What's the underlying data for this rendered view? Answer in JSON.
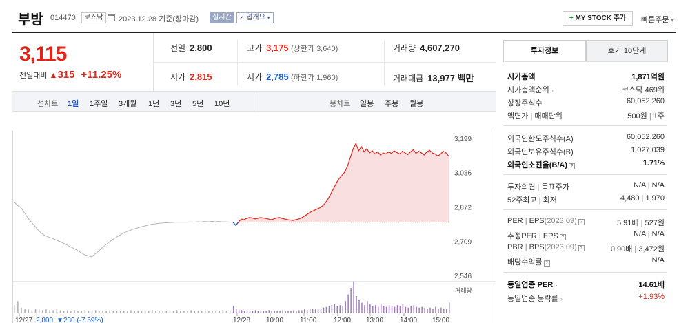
{
  "header": {
    "name": "부방",
    "code": "014470",
    "market_badge": "코스닥",
    "date": "2023.12.28 기준(장마감)",
    "realtime_label": "실시간",
    "overview_label": "기업개요",
    "mystock_label": "MY STOCK 추가",
    "quick_order_label": "빠른주문"
  },
  "price": {
    "current": "3,115",
    "change_label": "전일대비",
    "change_value": "315",
    "change_pct": "+11.25%"
  },
  "quote": {
    "prev_close_label": "전일",
    "prev_close": "2,800",
    "high_label": "고가",
    "high": "3,175",
    "upper_limit": "(상한가 3,640)",
    "volume_label": "거래량",
    "volume": "4,607,270",
    "open_label": "시가",
    "open": "2,815",
    "low_label": "저가",
    "low": "2,785",
    "lower_limit": "(하한가 1,960)",
    "amount_label": "거래대금",
    "amount": "13,977 백만"
  },
  "tabs": {
    "line_label": "선차트",
    "periods": [
      "1일",
      "1주일",
      "3개월",
      "1년",
      "3년",
      "5년",
      "10년"
    ],
    "selected_period": "1일",
    "candle_label": "봉차트",
    "candles": [
      "일봉",
      "주봉",
      "월봉"
    ]
  },
  "chart_data": {
    "type": "line",
    "y_ticks": [
      "3,199",
      "3,036",
      "2,872",
      "2,709",
      "2,546"
    ],
    "ylim": [
      2546,
      3199
    ],
    "x_ticks": [
      "12/27",
      "12/28",
      "10:00",
      "11:00",
      "12:00",
      "13:00",
      "14:00",
      "15:00"
    ],
    "volume_label": "거래량",
    "prev_day_footer": "2,800",
    "prev_day_change": "▼230 (-7.59%)",
    "prev_close_ref": 2800,
    "series": [
      {
        "day": "12/27",
        "values": [
          2900,
          2880,
          2870,
          2845,
          2820,
          2800,
          2780,
          2760,
          2745,
          2735,
          2728,
          2722,
          2715,
          2708,
          2700,
          2692,
          2682,
          2675,
          2665,
          2655,
          2645,
          2640,
          2635,
          2648,
          2662,
          2678,
          2692,
          2705,
          2718,
          2728,
          2738,
          2748,
          2755,
          2762,
          2768,
          2772,
          2778,
          2782,
          2786,
          2790,
          2792,
          2794,
          2796,
          2797,
          2798,
          2799,
          2800,
          2800,
          2800,
          2800,
          2801,
          2800,
          2802,
          2801,
          2803,
          2802,
          2804,
          2802,
          2803,
          2801,
          2802,
          2800,
          2800
        ]
      },
      {
        "day": "12/28",
        "values": [
          2800,
          2785,
          2800,
          2815,
          2812,
          2818,
          2822,
          2820,
          2816,
          2818,
          2822,
          2820,
          2818,
          2815,
          2812,
          2816,
          2820,
          2822,
          2818,
          2815,
          2812,
          2810,
          2808,
          2812,
          2815,
          2820,
          2828,
          2836,
          2845,
          2852,
          2858,
          2864,
          2870,
          2880,
          2895,
          2915,
          2940,
          2965,
          2990,
          3010,
          3025,
          3040,
          3070,
          3110,
          3150,
          3175,
          3140,
          3160,
          3135,
          3150,
          3130,
          3140,
          3125,
          3135,
          3120,
          3130,
          3125,
          3135,
          3128,
          3140,
          3132,
          3125,
          3138,
          3130,
          3122,
          3135,
          3145,
          3128,
          3138,
          3130,
          3120,
          3135,
          3142,
          3130,
          3125,
          3115,
          3125,
          3138,
          3130,
          3115
        ]
      }
    ],
    "volume": {
      "day1": [
        9,
        14,
        6,
        5,
        4,
        3,
        5,
        4,
        3,
        4,
        3,
        3,
        5,
        3,
        2,
        3,
        2,
        3,
        2,
        2,
        3,
        2,
        2,
        3,
        2,
        2,
        2,
        3,
        2,
        2,
        2,
        2,
        2,
        3,
        2,
        2,
        2,
        2,
        2,
        3,
        2,
        2,
        2,
        2,
        2,
        2,
        3,
        2,
        2,
        2,
        3,
        2,
        2,
        2,
        2,
        2,
        2,
        2,
        2,
        3,
        2,
        2,
        4
      ],
      "day2": [
        8,
        4,
        3,
        3,
        2,
        3,
        2,
        2,
        3,
        2,
        2,
        2,
        2,
        3,
        2,
        2,
        2,
        2,
        3,
        2,
        2,
        2,
        3,
        2,
        3,
        3,
        4,
        3,
        4,
        5,
        4,
        5,
        4,
        6,
        7,
        8,
        9,
        10,
        8,
        9,
        8,
        14,
        22,
        30,
        38,
        20,
        15,
        12,
        9,
        14,
        10,
        8,
        9,
        7,
        10,
        8,
        7,
        9,
        8,
        7,
        9,
        8,
        10,
        7,
        6,
        8,
        9,
        7,
        6,
        7,
        6,
        5,
        6,
        5,
        7,
        5,
        6,
        5,
        4,
        12
      ]
    }
  },
  "invest": {
    "tab_selected": "투자정보",
    "tab_other": "호가 10단계",
    "market_cap_label": "시가총액",
    "market_cap": "1,871억원",
    "cap_rank_label": "시가총액순위",
    "cap_rank": "코스닥 469위",
    "shares_label": "상장주식수",
    "shares": "60,052,260",
    "par_label": "액면가",
    "unit_label": "매매단위",
    "par_value": "500원",
    "unit_value": "1주",
    "foreign_limit_label": "외국인한도주식수(A)",
    "foreign_limit": "60,052,260",
    "foreign_hold_label": "외국인보유주식수(B)",
    "foreign_hold": "1,027,039",
    "foreign_ratio_label": "외국인소진율(B/A)",
    "foreign_ratio": "1.71%",
    "opinion_label": "투자의견",
    "target_label": "목표주가",
    "opinion": "N/A",
    "target": "N/A",
    "w52_high_label": "52주최고",
    "w52_low_label": "최저",
    "w52_high": "4,480",
    "w52_low": "1,970",
    "per_label": "PER",
    "eps_label": "EPS",
    "per_eps_date": "(2023.09)",
    "per": "5.91배",
    "eps": "527원",
    "est_per_label": "추정PER",
    "est_eps_label": "EPS",
    "est_per": "N/A",
    "est_eps": "N/A",
    "pbr_label": "PBR",
    "bps_label": "BPS",
    "pbr_bps_date": "(2023.09)",
    "pbr": "0.90배",
    "bps": "3,472원",
    "div_label": "배당수익률",
    "div": "N/A",
    "sector_per_label": "동일업종 PER",
    "sector_per": "14.61배",
    "sector_rate_label": "동일업종 등락률",
    "sector_rate": "+1.93%"
  }
}
